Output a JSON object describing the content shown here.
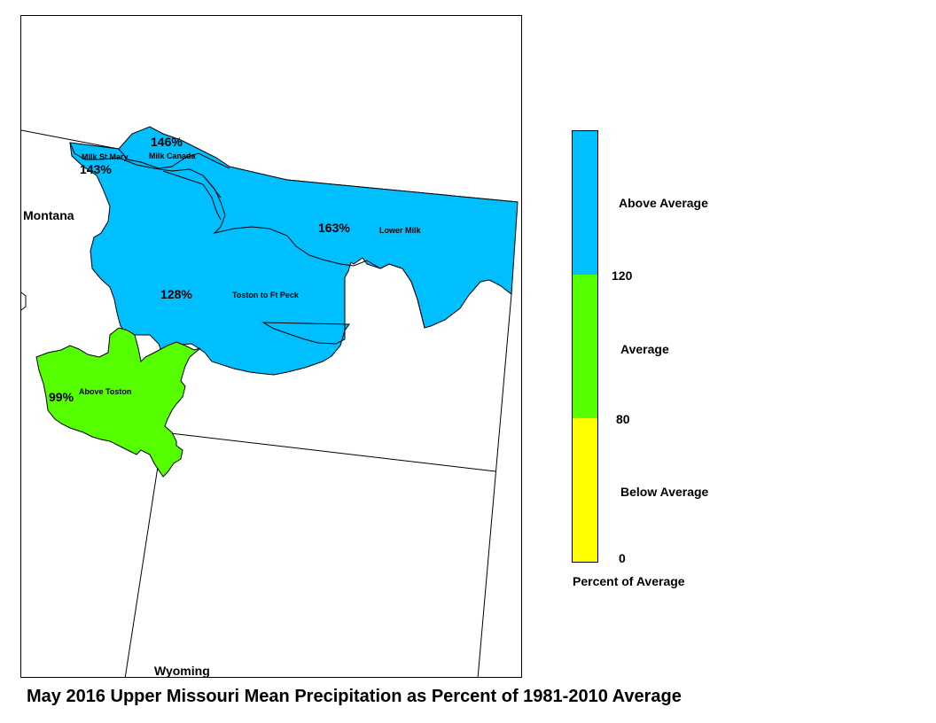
{
  "title": "May 2016 Upper Missouri Mean Precipitation as Percent of 1981-2010 Average",
  "colors": {
    "above_average": "#00BFFF",
    "average": "#55FF00",
    "below_average": "#FFFF00",
    "boundary": "#000000"
  },
  "states": {
    "montana": "Montana",
    "wyoming": "Wyoming"
  },
  "basins": [
    {
      "name": "Milk St Mary",
      "percent": "143%",
      "category": "above_average"
    },
    {
      "name": "Milk Canada",
      "percent": "146%",
      "category": "above_average"
    },
    {
      "name": "Lower Milk",
      "percent": "163%",
      "category": "above_average"
    },
    {
      "name": "Toston to Ft Peck",
      "percent": "128%",
      "category": "above_average"
    },
    {
      "name": "Above Toston",
      "percent": "99%",
      "category": "average"
    }
  ],
  "legend": {
    "title": "Percent of Average",
    "categories": [
      {
        "label": "Above Average",
        "color": "#00BFFF",
        "range": [
          120,
          null
        ]
      },
      {
        "label": "Average",
        "color": "#55FF00",
        "range": [
          80,
          120
        ]
      },
      {
        "label": "Below Average",
        "color": "#FFFF00",
        "range": [
          0,
          80
        ]
      }
    ],
    "breaks": [
      "120",
      "80",
      "0"
    ]
  }
}
